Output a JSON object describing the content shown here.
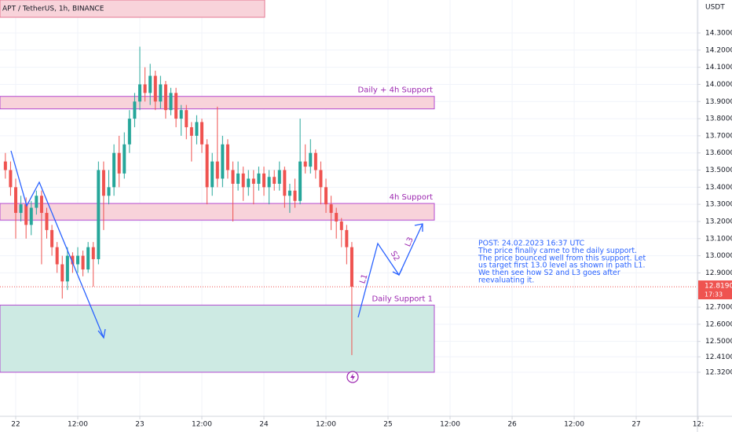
{
  "chart_data": {
    "type": "candlestick",
    "title": "APT / TetherUS, 1h, BINANCE",
    "y_axis_label": "USDT",
    "x": [
      -2,
      -1,
      0,
      1,
      2,
      3,
      4,
      5,
      6,
      7,
      8,
      9,
      10,
      11,
      12,
      13,
      14,
      15,
      16,
      17,
      18,
      19,
      20,
      21,
      22,
      23,
      24,
      25,
      26,
      27,
      28,
      29,
      30,
      31,
      32,
      33,
      34,
      35,
      36,
      37,
      38,
      39,
      40,
      41,
      42,
      43,
      44,
      45,
      46,
      47,
      48,
      49,
      50,
      51,
      52,
      53,
      54,
      55,
      56,
      57,
      58,
      59,
      60,
      61,
      62,
      63,
      64,
      65
    ],
    "open": [
      13.55,
      13.5,
      13.4,
      13.25,
      13.3,
      13.18,
      13.28,
      13.35,
      13.25,
      13.15,
      13.05,
      12.95,
      12.85,
      13.0,
      12.95,
      13.0,
      12.92,
      13.05,
      12.98,
      13.5,
      13.35,
      13.4,
      13.6,
      13.48,
      13.65,
      13.8,
      13.9,
      14.0,
      13.95,
      14.05,
      13.9,
      14.0,
      13.85,
      13.95,
      13.8,
      13.85,
      13.75,
      13.7,
      13.78,
      13.65,
      13.4,
      13.55,
      13.45,
      13.65,
      13.5,
      13.42,
      13.48,
      13.4,
      13.45,
      13.42,
      13.48,
      13.4,
      13.46,
      13.42,
      13.5,
      13.35,
      13.38,
      13.32,
      13.55,
      13.52,
      13.6,
      13.5,
      13.4,
      13.3,
      13.25,
      13.2,
      13.15,
      13.05
    ],
    "high": [
      13.6,
      13.55,
      13.45,
      13.35,
      13.34,
      13.32,
      13.38,
      13.38,
      13.28,
      13.18,
      13.08,
      13.0,
      13.05,
      13.02,
      13.05,
      13.03,
      13.08,
      13.08,
      13.55,
      13.55,
      13.5,
      13.65,
      13.7,
      13.72,
      13.85,
      13.95,
      14.22,
      14.1,
      14.12,
      14.08,
      14.05,
      14.02,
      13.98,
      13.98,
      13.88,
      13.88,
      13.78,
      13.82,
      13.8,
      13.68,
      13.6,
      13.87,
      13.7,
      13.68,
      13.55,
      13.55,
      13.52,
      13.5,
      13.5,
      13.52,
      13.52,
      13.5,
      13.5,
      13.55,
      13.52,
      13.42,
      13.45,
      13.8,
      13.65,
      13.68,
      13.62,
      13.55,
      13.45,
      13.35,
      13.28,
      13.22,
      13.18,
      13.08
    ],
    "low": [
      13.45,
      13.35,
      13.1,
      13.2,
      13.1,
      13.12,
      13.24,
      12.95,
      13.1,
      13.0,
      12.9,
      12.75,
      12.8,
      12.9,
      12.9,
      12.88,
      12.9,
      12.82,
      12.95,
      13.15,
      13.3,
      13.35,
      13.4,
      13.45,
      13.6,
      13.75,
      13.85,
      13.9,
      13.88,
      13.85,
      13.86,
      13.8,
      13.82,
      13.75,
      13.7,
      13.68,
      13.55,
      13.65,
      13.6,
      13.3,
      13.35,
      13.4,
      13.4,
      13.45,
      13.2,
      13.38,
      13.32,
      13.35,
      13.3,
      13.38,
      13.35,
      13.3,
      13.38,
      13.38,
      13.28,
      13.25,
      13.28,
      13.3,
      13.48,
      13.48,
      13.45,
      13.3,
      13.25,
      13.15,
      13.1,
      13.05,
      12.95,
      12.42
    ],
    "close": [
      13.5,
      13.4,
      13.25,
      13.3,
      13.18,
      13.28,
      13.35,
      13.25,
      13.15,
      13.05,
      12.95,
      12.85,
      13.0,
      12.95,
      13.0,
      12.92,
      13.05,
      12.98,
      13.5,
      13.35,
      13.4,
      13.6,
      13.48,
      13.65,
      13.8,
      13.9,
      14.0,
      13.95,
      14.05,
      13.9,
      14.0,
      13.85,
      13.95,
      13.8,
      13.85,
      13.75,
      13.7,
      13.78,
      13.65,
      13.4,
      13.55,
      13.45,
      13.65,
      13.5,
      13.42,
      13.48,
      13.4,
      13.45,
      13.42,
      13.48,
      13.4,
      13.46,
      13.42,
      13.5,
      13.35,
      13.38,
      13.32,
      13.55,
      13.52,
      13.6,
      13.5,
      13.4,
      13.3,
      13.25,
      13.2,
      13.15,
      13.05,
      12.819
    ],
    "up_color": "#26a69a",
    "down_color": "#ef5350",
    "xlim": [
      -3.04,
      131.84
    ],
    "xticks": [
      {
        "value": 0,
        "label": "22"
      },
      {
        "value": 12,
        "label": "12:00"
      },
      {
        "value": 24,
        "label": "23"
      },
      {
        "value": 36,
        "label": "12:00"
      },
      {
        "value": 48,
        "label": "24"
      },
      {
        "value": 60,
        "label": "12:00"
      },
      {
        "value": 72,
        "label": "25"
      },
      {
        "value": 84,
        "label": "12:00"
      },
      {
        "value": 96,
        "label": "26"
      },
      {
        "value": 108,
        "label": "12:00"
      },
      {
        "value": 120,
        "label": "27"
      },
      {
        "value": 132,
        "label": "12:"
      }
    ],
    "ylim": [
      12.063,
      14.4925
    ],
    "yticks": [
      {
        "value": 14.3,
        "label": "14.3000"
      },
      {
        "value": 14.2,
        "label": "14.2000"
      },
      {
        "value": 14.1,
        "label": "14.1000"
      },
      {
        "value": 14.0,
        "label": "14.0000"
      },
      {
        "value": 13.9,
        "label": "13.9000"
      },
      {
        "value": 13.8,
        "label": "13.8000"
      },
      {
        "value": 13.7,
        "label": "13.7000"
      },
      {
        "value": 13.6,
        "label": "13.6000"
      },
      {
        "value": 13.5,
        "label": "13.5000"
      },
      {
        "value": 13.4,
        "label": "13.4000"
      },
      {
        "value": 13.3,
        "label": "13.3000"
      },
      {
        "value": 13.2,
        "label": "13.2000"
      },
      {
        "value": 13.1,
        "label": "13.1000"
      },
      {
        "value": 13.0,
        "label": "13.0000"
      },
      {
        "value": 12.9,
        "label": "12.9000"
      },
      {
        "value": 12.7,
        "label": "12.7000"
      },
      {
        "value": 12.6,
        "label": "12.6000"
      },
      {
        "value": 12.5,
        "label": "12.5000"
      },
      {
        "value": 12.41,
        "label": "12.4100"
      },
      {
        "value": 12.32,
        "label": "12.3200"
      }
    ],
    "grid": true,
    "zones": [
      {
        "label": "Daily + 4h Support",
        "top": 13.93,
        "bottom": 13.857,
        "color": "#f8d3da"
      },
      {
        "label": "4h Support",
        "top": 13.305,
        "bottom": 13.208,
        "color": "#f8d3da"
      },
      {
        "label": "Daily Support 1",
        "top": 12.712,
        "bottom": 12.32,
        "color": "#cdeae3"
      }
    ],
    "last_price": {
      "value": 12.819,
      "label": "12.8190",
      "countdown": "17:33",
      "color": "#ef5350"
    },
    "path_labels": [
      "L1",
      "S2",
      "L3"
    ],
    "annotation": [
      "POST: 24.02.2023 16:37 UTC",
      "The price finally came to the daily support.",
      "The price bounced well from this support. Let",
      "us target first 13.0 level as shown in path L1.",
      "We then see how S2 and L3 goes after",
      "reevaluating it."
    ]
  }
}
